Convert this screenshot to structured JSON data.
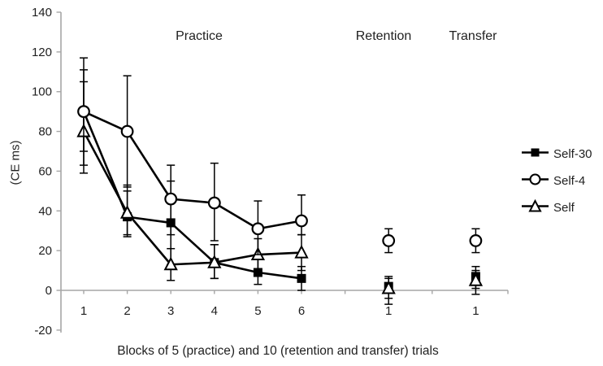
{
  "figure": {
    "background": "#ffffff",
    "colors": {
      "series": "#000000",
      "axis_line": "#a6a6a6",
      "text": "#1f1f1f",
      "marker_fill_open": "#ffffff"
    }
  },
  "chart_data": {
    "type": "line",
    "title": "",
    "xlabel": "Blocks of 5  (practice) and 10 (retention and transfer) trials",
    "ylabel": "(CE ms)",
    "ylim": [
      -20,
      140
    ],
    "y_ticks": [
      140,
      120,
      100,
      80,
      60,
      40,
      20,
      0,
      -20
    ],
    "grid": false,
    "legend_position": "right",
    "error_bars": true,
    "annotations": [
      {
        "text": "Practice"
      },
      {
        "text": "Retention"
      },
      {
        "text": "Transfer"
      }
    ],
    "x_tick_slots": [
      1,
      2,
      3,
      4,
      5,
      6,
      7,
      8,
      9,
      10
    ],
    "x_ticks": [
      {
        "slot": 1,
        "label": "1"
      },
      {
        "slot": 2,
        "label": "2"
      },
      {
        "slot": 3,
        "label": "3"
      },
      {
        "slot": 4,
        "label": "4"
      },
      {
        "slot": 5,
        "label": "5"
      },
      {
        "slot": 6,
        "label": "6"
      },
      {
        "slot": 8,
        "label": "1"
      },
      {
        "slot": 10,
        "label": "1"
      }
    ],
    "series": [
      {
        "name": "Self-30",
        "marker": "filled-square",
        "connected_slots_max": 6,
        "points": [
          {
            "slot": 1,
            "y": 90,
            "err_up": 21,
            "err_down": 20
          },
          {
            "slot": 2,
            "y": 37,
            "err_up": 16,
            "err_down": 10
          },
          {
            "slot": 3,
            "y": 34,
            "err_up": 21,
            "err_down": 21
          },
          {
            "slot": 4,
            "y": 14,
            "err_up": 9,
            "err_down": 8
          },
          {
            "slot": 5,
            "y": 9,
            "err_up": 7,
            "err_down": 6
          },
          {
            "slot": 6,
            "y": 6,
            "err_up": 6,
            "err_down": 6
          },
          {
            "slot": 8,
            "y": 2,
            "err_up": 5,
            "err_down": 6
          },
          {
            "slot": 10,
            "y": 7,
            "err_up": 5,
            "err_down": 6
          }
        ]
      },
      {
        "name": "Self-4",
        "marker": "open-circle",
        "connected_slots_max": 6,
        "points": [
          {
            "slot": 1,
            "y": 90,
            "err_up": 27,
            "err_down": 27
          },
          {
            "slot": 2,
            "y": 80,
            "err_up": 28,
            "err_down": 28
          },
          {
            "slot": 3,
            "y": 46,
            "err_up": 17,
            "err_down": 18
          },
          {
            "slot": 4,
            "y": 44,
            "err_up": 20,
            "err_down": 19
          },
          {
            "slot": 5,
            "y": 31,
            "err_up": 14,
            "err_down": 13
          },
          {
            "slot": 6,
            "y": 35,
            "err_up": 13,
            "err_down": 7
          },
          {
            "slot": 8,
            "y": 25,
            "err_up": 6,
            "err_down": 6
          },
          {
            "slot": 10,
            "y": 25,
            "err_up": 6,
            "err_down": 6
          }
        ]
      },
      {
        "name": "Self",
        "marker": "open-triangle",
        "connected_slots_max": 6,
        "points": [
          {
            "slot": 1,
            "y": 80,
            "err_up": 25,
            "err_down": 21
          },
          {
            "slot": 2,
            "y": 39,
            "err_up": 11,
            "err_down": 11
          },
          {
            "slot": 3,
            "y": 13,
            "err_up": 8,
            "err_down": 8
          },
          {
            "slot": 4,
            "y": 14,
            "err_up": 9,
            "err_down": 8
          },
          {
            "slot": 5,
            "y": 18,
            "err_up": 8,
            "err_down": 8
          },
          {
            "slot": 6,
            "y": 19,
            "err_up": 9,
            "err_down": 9
          },
          {
            "slot": 8,
            "y": 1,
            "err_up": 5,
            "err_down": 8
          },
          {
            "slot": 10,
            "y": 5,
            "err_up": 5,
            "err_down": 7
          }
        ]
      }
    ]
  }
}
